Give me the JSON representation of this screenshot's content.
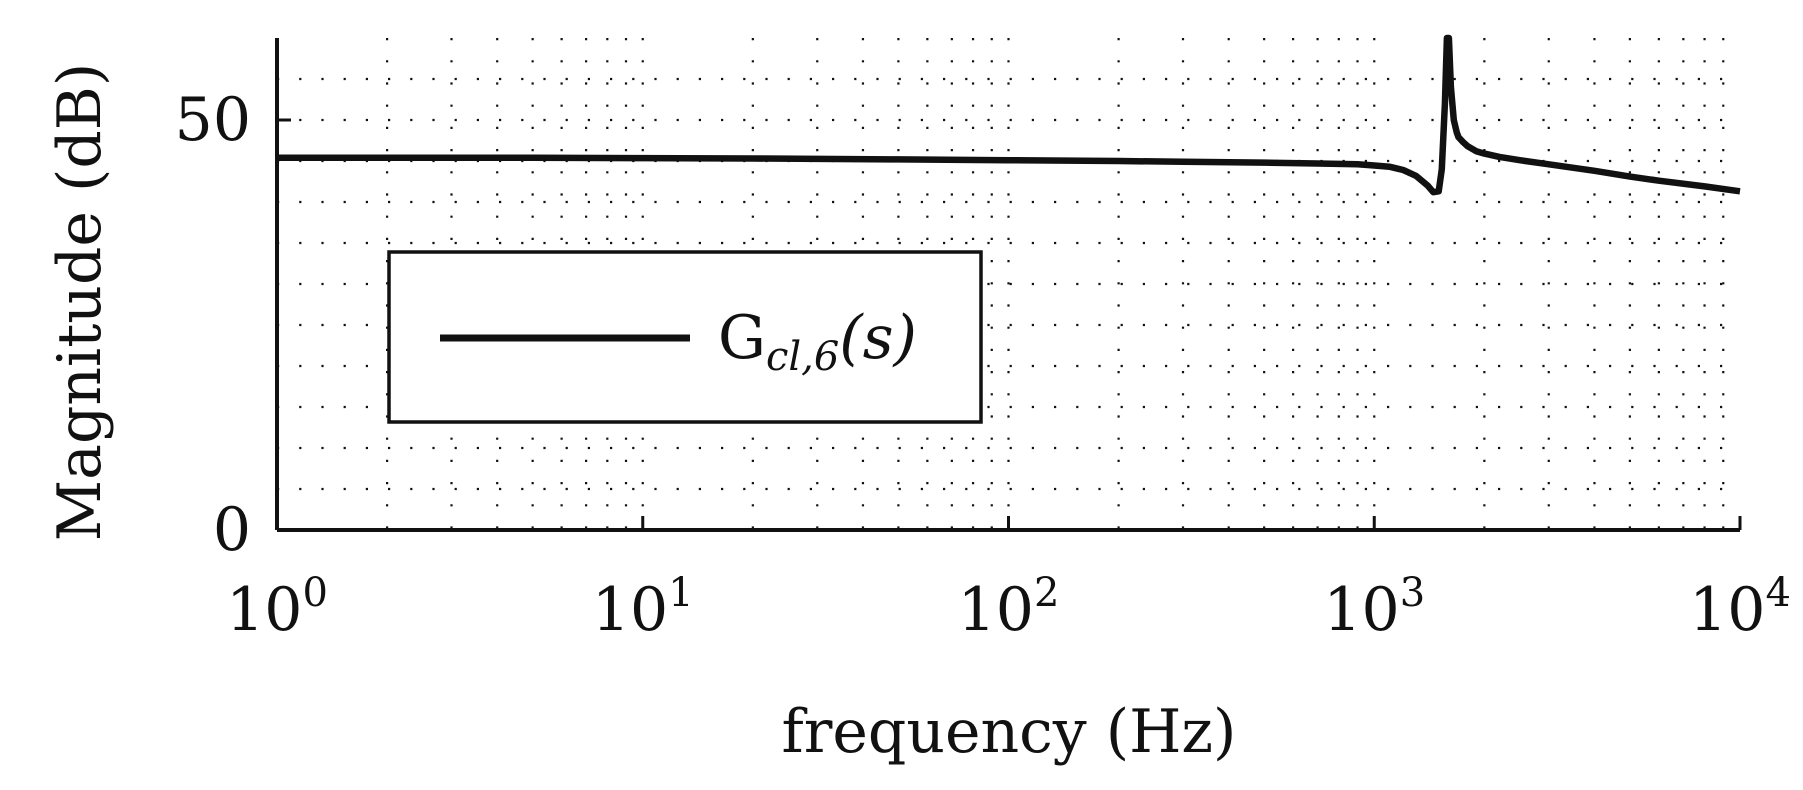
{
  "chart_data": {
    "type": "line",
    "xlabel": "frequency (Hz)",
    "ylabel": "Magnitude (dB)",
    "x_scale": "log",
    "xlim": [
      1,
      10000
    ],
    "ylim": [
      0,
      60
    ],
    "xticks": [
      {
        "value": 1,
        "base": "10",
        "exp": "0"
      },
      {
        "value": 10,
        "base": "10",
        "exp": "1"
      },
      {
        "value": 100,
        "base": "10",
        "exp": "2"
      },
      {
        "value": 1000,
        "base": "10",
        "exp": "3"
      },
      {
        "value": 10000,
        "base": "10",
        "exp": "4"
      }
    ],
    "yticks": [
      {
        "value": 0,
        "label": "0"
      },
      {
        "value": 50,
        "label": "50"
      }
    ],
    "grid": "dotted",
    "legend_position": "center-left",
    "series": [
      {
        "name": "G",
        "name_subscript": "cl,6",
        "name_suffix": "(s)",
        "color": "#111111",
        "x": [
          1,
          2,
          5,
          10,
          20,
          50,
          100,
          200,
          300,
          500,
          700,
          900,
          1000,
          1100,
          1200,
          1300,
          1400,
          1450,
          1500,
          1530,
          1560,
          1580,
          1600,
          1620,
          1650,
          1680,
          1700,
          1750,
          1800,
          1900,
          2000,
          2200,
          2500,
          3000,
          4000,
          5000,
          6000,
          8000,
          10000
        ],
        "y": [
          45.4,
          45.4,
          45.4,
          45.35,
          45.3,
          45.2,
          45.1,
          45.0,
          44.9,
          44.8,
          44.7,
          44.6,
          44.45,
          44.3,
          43.9,
          43.2,
          42.0,
          41.2,
          41.3,
          44.0,
          52.0,
          60.0,
          60.0,
          54.0,
          50.0,
          48.5,
          47.9,
          47.3,
          46.8,
          46.2,
          45.9,
          45.5,
          45.1,
          44.6,
          43.8,
          43.1,
          42.6,
          41.9,
          41.3
        ]
      }
    ]
  }
}
